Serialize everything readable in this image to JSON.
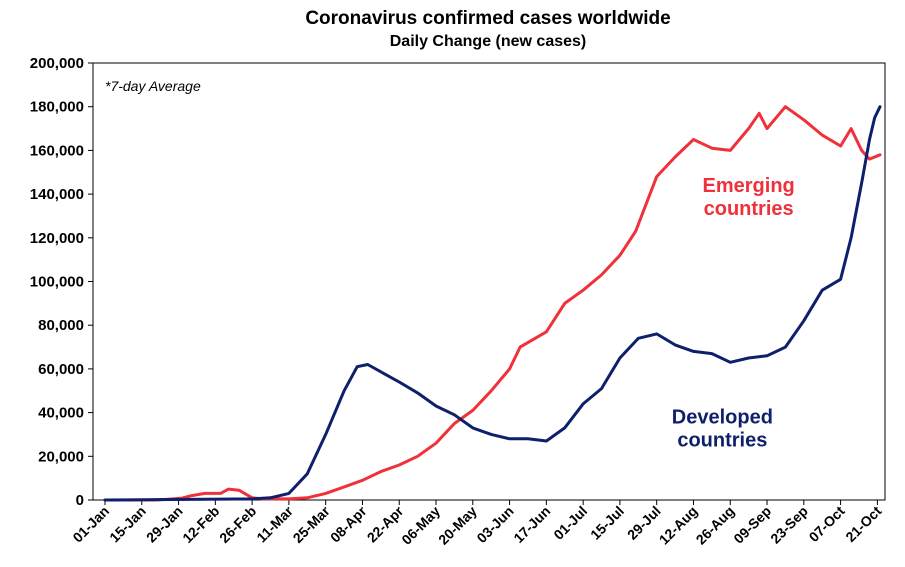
{
  "chart_data": {
    "type": "line",
    "title": "Coronavirus confirmed cases worldwide",
    "subtitle": "Daily Change (new cases)",
    "note": "*7-day Average",
    "xlabel": "",
    "ylabel": "",
    "ylim": [
      0,
      200000
    ],
    "yticks": [
      0,
      20000,
      40000,
      60000,
      80000,
      100000,
      120000,
      140000,
      160000,
      180000,
      200000
    ],
    "ytick_labels": [
      "0",
      "20,000",
      "40,000",
      "60,000",
      "80,000",
      "100,000",
      "120,000",
      "140,000",
      "160,000",
      "180,000",
      "200,000"
    ],
    "xlim": [
      "2020-01-01",
      "2020-10-22"
    ],
    "xticks": [
      "2020-01-01",
      "2020-01-15",
      "2020-01-29",
      "2020-02-12",
      "2020-02-26",
      "2020-03-11",
      "2020-03-25",
      "2020-04-08",
      "2020-04-22",
      "2020-05-06",
      "2020-05-20",
      "2020-06-03",
      "2020-06-17",
      "2020-07-01",
      "2020-07-15",
      "2020-07-29",
      "2020-08-12",
      "2020-08-26",
      "2020-09-09",
      "2020-09-23",
      "2020-10-07",
      "2020-10-21"
    ],
    "xtick_labels": [
      "01-Jan",
      "15-Jan",
      "29-Jan",
      "12-Feb",
      "26-Feb",
      "11-Mar",
      "25-Mar",
      "08-Apr",
      "22-Apr",
      "06-May",
      "20-May",
      "03-Jun",
      "17-Jun",
      "01-Jul",
      "15-Jul",
      "29-Jul",
      "12-Aug",
      "26-Aug",
      "09-Sep",
      "23-Sep",
      "07-Oct",
      "21-Oct"
    ],
    "grid": false,
    "series": [
      {
        "name": "Emerging countries",
        "label_lines": [
          "Emerging",
          "countries"
        ],
        "color": "#f0303a",
        "points": [
          [
            "2020-01-01",
            0
          ],
          [
            "2020-01-20",
            0
          ],
          [
            "2020-01-25",
            300
          ],
          [
            "2020-01-30",
            800
          ],
          [
            "2020-02-03",
            2000
          ],
          [
            "2020-02-08",
            3000
          ],
          [
            "2020-02-14",
            3000
          ],
          [
            "2020-02-17",
            5000
          ],
          [
            "2020-02-21",
            4500
          ],
          [
            "2020-02-26",
            1000
          ],
          [
            "2020-03-01",
            500
          ],
          [
            "2020-03-11",
            500
          ],
          [
            "2020-03-18",
            1000
          ],
          [
            "2020-03-25",
            3000
          ],
          [
            "2020-04-01",
            6000
          ],
          [
            "2020-04-08",
            9000
          ],
          [
            "2020-04-15",
            13000
          ],
          [
            "2020-04-22",
            16000
          ],
          [
            "2020-04-29",
            20000
          ],
          [
            "2020-05-06",
            26000
          ],
          [
            "2020-05-13",
            35000
          ],
          [
            "2020-05-20",
            41000
          ],
          [
            "2020-05-27",
            50000
          ],
          [
            "2020-06-03",
            60000
          ],
          [
            "2020-06-07",
            70000
          ],
          [
            "2020-06-17",
            77000
          ],
          [
            "2020-06-24",
            90000
          ],
          [
            "2020-07-01",
            96000
          ],
          [
            "2020-07-08",
            103000
          ],
          [
            "2020-07-15",
            112000
          ],
          [
            "2020-07-21",
            123000
          ],
          [
            "2020-07-29",
            148000
          ],
          [
            "2020-08-05",
            157000
          ],
          [
            "2020-08-12",
            165000
          ],
          [
            "2020-08-19",
            161000
          ],
          [
            "2020-08-26",
            160000
          ],
          [
            "2020-09-02",
            170000
          ],
          [
            "2020-09-06",
            177000
          ],
          [
            "2020-09-09",
            170000
          ],
          [
            "2020-09-16",
            180000
          ],
          [
            "2020-09-23",
            174000
          ],
          [
            "2020-09-30",
            167000
          ],
          [
            "2020-10-07",
            162000
          ],
          [
            "2020-10-11",
            170000
          ],
          [
            "2020-10-15",
            160000
          ],
          [
            "2020-10-18",
            156000
          ],
          [
            "2020-10-22",
            158000
          ]
        ]
      },
      {
        "name": "Developed countries",
        "label_lines": [
          "Developed",
          "countries"
        ],
        "color": "#0e1f6b",
        "points": [
          [
            "2020-01-01",
            0
          ],
          [
            "2020-02-26",
            500
          ],
          [
            "2020-03-04",
            1000
          ],
          [
            "2020-03-11",
            3000
          ],
          [
            "2020-03-18",
            12000
          ],
          [
            "2020-03-25",
            30000
          ],
          [
            "2020-04-01",
            50000
          ],
          [
            "2020-04-06",
            61000
          ],
          [
            "2020-04-10",
            62000
          ],
          [
            "2020-04-16",
            58000
          ],
          [
            "2020-04-22",
            54000
          ],
          [
            "2020-04-29",
            49000
          ],
          [
            "2020-05-06",
            43000
          ],
          [
            "2020-05-13",
            39000
          ],
          [
            "2020-05-20",
            33000
          ],
          [
            "2020-05-27",
            30000
          ],
          [
            "2020-06-03",
            28000
          ],
          [
            "2020-06-10",
            28000
          ],
          [
            "2020-06-17",
            27000
          ],
          [
            "2020-06-24",
            33000
          ],
          [
            "2020-07-01",
            44000
          ],
          [
            "2020-07-08",
            51000
          ],
          [
            "2020-07-15",
            65000
          ],
          [
            "2020-07-22",
            74000
          ],
          [
            "2020-07-29",
            76000
          ],
          [
            "2020-08-05",
            71000
          ],
          [
            "2020-08-12",
            68000
          ],
          [
            "2020-08-19",
            67000
          ],
          [
            "2020-08-26",
            63000
          ],
          [
            "2020-09-02",
            65000
          ],
          [
            "2020-09-09",
            66000
          ],
          [
            "2020-09-16",
            70000
          ],
          [
            "2020-09-23",
            82000
          ],
          [
            "2020-09-30",
            96000
          ],
          [
            "2020-10-07",
            101000
          ],
          [
            "2020-10-11",
            120000
          ],
          [
            "2020-10-15",
            145000
          ],
          [
            "2020-10-18",
            165000
          ],
          [
            "2020-10-20",
            175000
          ],
          [
            "2020-10-22",
            180000
          ]
        ]
      }
    ]
  }
}
